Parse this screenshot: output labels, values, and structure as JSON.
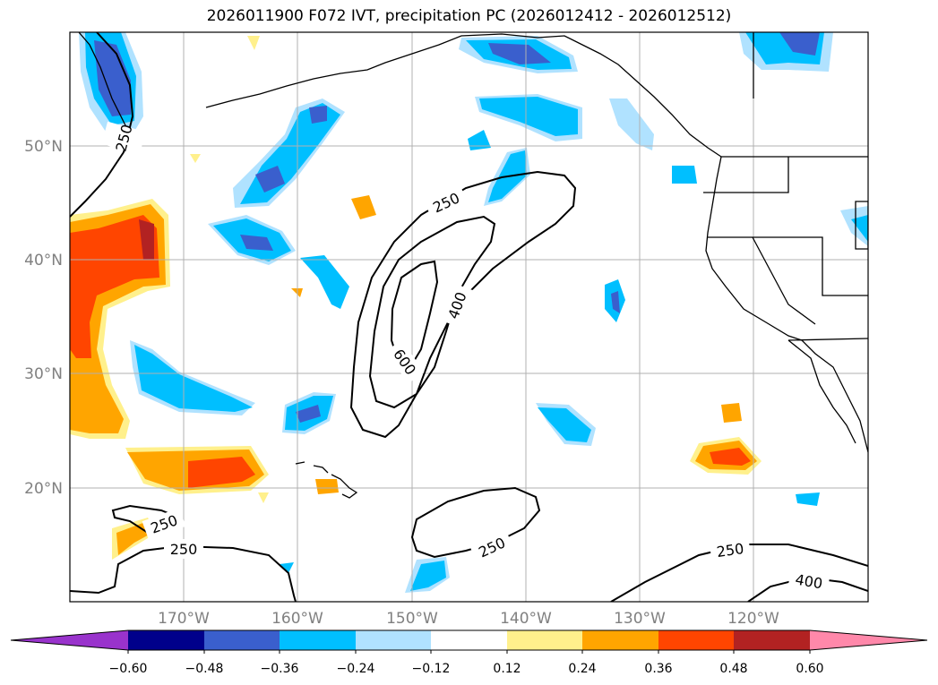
{
  "title": "2026011900 F072 IVT, precipitation PC (2026012412 - 2026012512)",
  "map": {
    "lon_range": [
      -180,
      -110
    ],
    "lat_range": [
      10,
      60
    ],
    "lat_labels": [
      "50°N",
      "40°N",
      "30°N",
      "20°N"
    ],
    "lat_values": [
      50,
      40,
      30,
      20
    ],
    "lon_labels": [
      "170°W",
      "160°W",
      "150°W",
      "140°W",
      "130°W",
      "120°W"
    ],
    "lon_values": [
      -170,
      -160,
      -150,
      -140,
      -130,
      -120
    ],
    "grid": true
  },
  "contours": {
    "labels": [
      "250",
      "250",
      "400",
      "600",
      "250",
      "250",
      "250",
      "250",
      "400"
    ]
  },
  "colorbar": {
    "ticks": [
      "−0.60",
      "−0.48",
      "−0.36",
      "−0.24",
      "−0.12",
      "0.12",
      "0.24",
      "0.36",
      "0.48",
      "0.60"
    ],
    "colors": [
      "#9933cc",
      "#00008b",
      "#3a5fcd",
      "#00bfff",
      "#b0e2ff",
      "#ffffff",
      "#fff08c",
      "#ffa500",
      "#ff4500",
      "#b22222",
      "#ff88aa",
      "#ff88aa"
    ]
  },
  "colors": {
    "grid": "#b0b0b0",
    "contour": "#000000",
    "coast": "#000000"
  }
}
